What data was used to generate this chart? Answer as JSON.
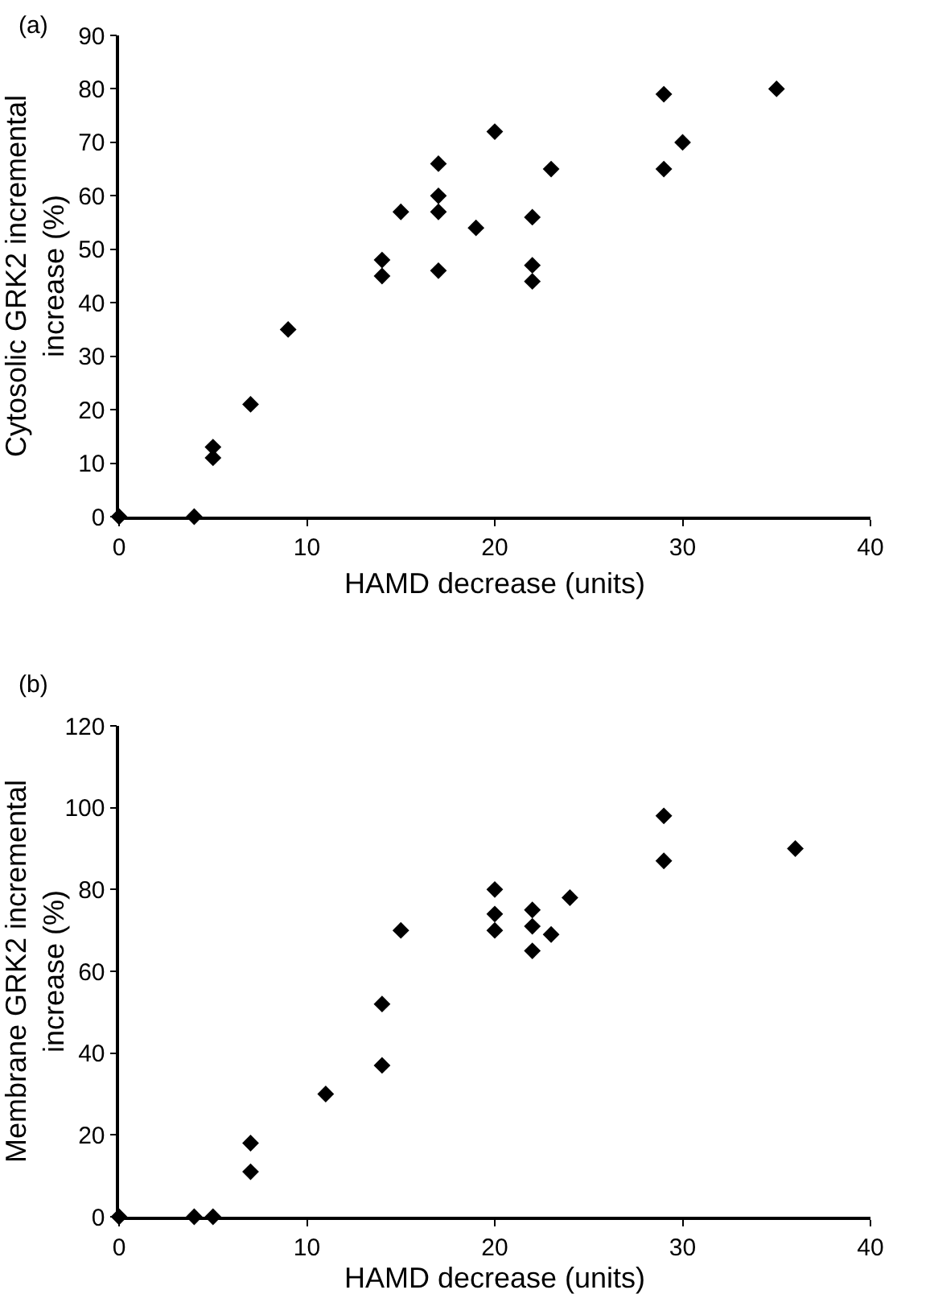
{
  "chart_data": [
    {
      "type": "scatter",
      "title": "(a)",
      "xlabel": "HAMD decrease (units)",
      "ylabel": "Cytosolic GRK2 incremental increase (%)",
      "marker": "diamond",
      "grid": false,
      "x": [
        0,
        4,
        5,
        5,
        7,
        9,
        14,
        14,
        15,
        17,
        17,
        17,
        17,
        19,
        20,
        22,
        22,
        22,
        23,
        29,
        29,
        30,
        35
      ],
      "series": [
        {
          "color": "#000000",
          "values": [
            0,
            0,
            13,
            11,
            21,
            35,
            48,
            45,
            57,
            66,
            60,
            57,
            46,
            54,
            72,
            56,
            47,
            44,
            65,
            79,
            65,
            70,
            80
          ]
        }
      ],
      "xlim": [
        0,
        40
      ],
      "xticks": [
        0,
        10,
        20,
        30,
        40
      ],
      "ylim": [
        0,
        90
      ],
      "yticks": [
        0,
        10,
        20,
        30,
        40,
        50,
        60,
        70,
        80,
        90
      ]
    },
    {
      "type": "scatter",
      "title": "(b)",
      "xlabel": "HAMD decrease (units)",
      "ylabel": "Membrane GRK2 incremental increase (%)",
      "marker": "diamond",
      "grid": false,
      "x": [
        0,
        4,
        5,
        7,
        7,
        11,
        14,
        14,
        15,
        20,
        20,
        20,
        22,
        22,
        22,
        23,
        24,
        29,
        29,
        36
      ],
      "series": [
        {
          "color": "#000000",
          "values": [
            0,
            0,
            0,
            18,
            11,
            30,
            52,
            37,
            70,
            80,
            74,
            70,
            75,
            71,
            65,
            69,
            78,
            98,
            87,
            90
          ]
        }
      ],
      "xlim": [
        0,
        40
      ],
      "xticks": [
        0,
        10,
        20,
        30,
        40
      ],
      "ylim": [
        0,
        120
      ],
      "yticks": [
        0,
        20,
        40,
        60,
        80,
        100,
        120
      ]
    }
  ]
}
